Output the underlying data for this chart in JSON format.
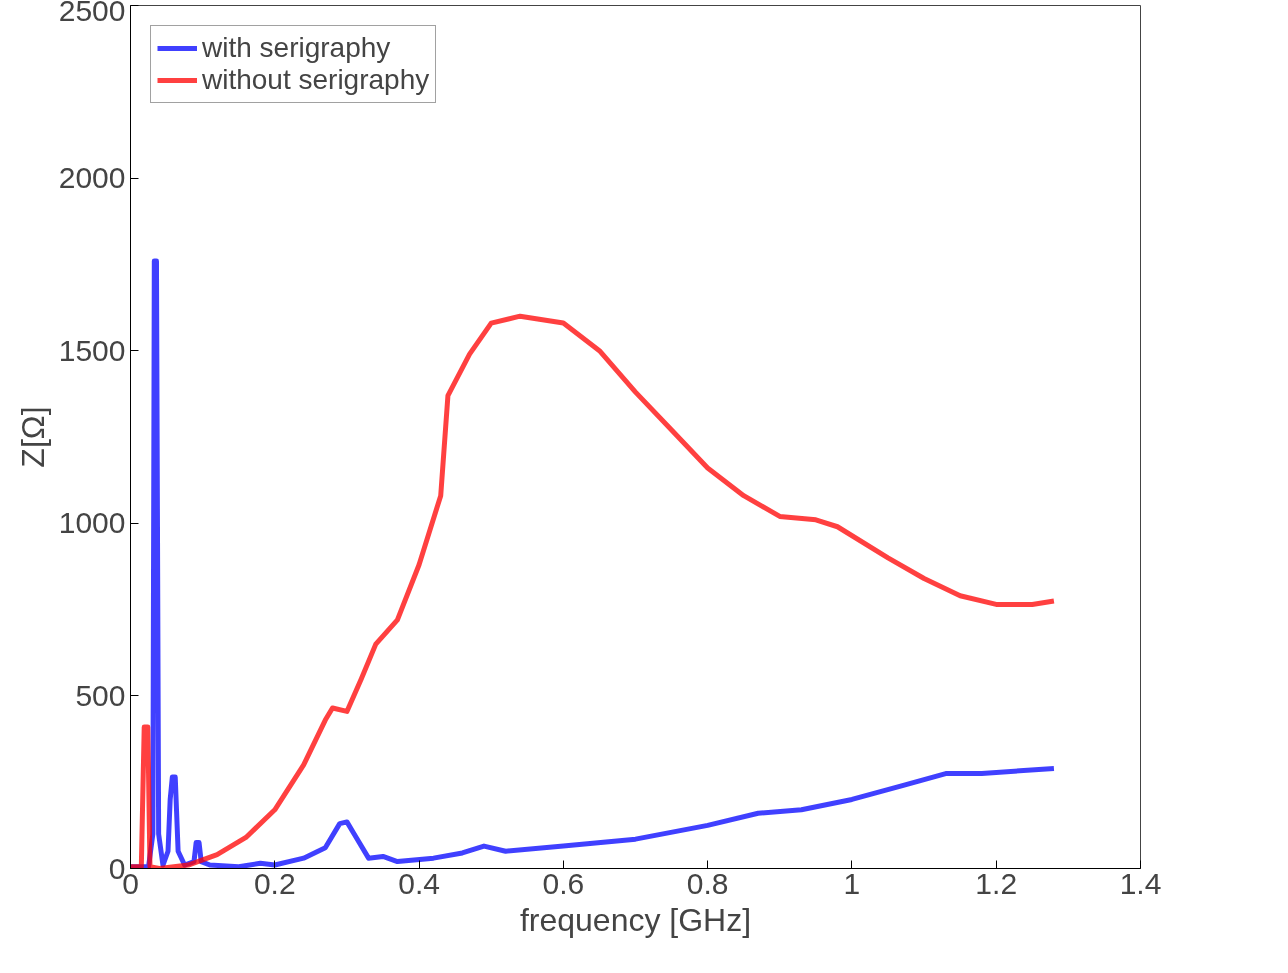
{
  "chart_data": {
    "type": "line",
    "xlabel": "frequency [GHz]",
    "ylabel": "Z[Ω]",
    "xlim": [
      0,
      1.4
    ],
    "ylim": [
      0,
      2500
    ],
    "xticks": [
      0,
      0.2,
      0.4,
      0.6,
      0.8,
      1,
      1.2,
      1.4
    ],
    "yticks": [
      0,
      500,
      1000,
      1500,
      2000,
      2500
    ],
    "grid": false,
    "legend": "top left",
    "line_style": "solid",
    "series": [
      {
        "name": "with serigraphy",
        "color": "#0000ff",
        "x": [
          0,
          0.025,
          0.031,
          0.033,
          0.036,
          0.039,
          0.045,
          0.052,
          0.055,
          0.058,
          0.062,
          0.066,
          0.075,
          0.088,
          0.091,
          0.095,
          0.098,
          0.11,
          0.15,
          0.18,
          0.2,
          0.24,
          0.27,
          0.29,
          0.3,
          0.31,
          0.33,
          0.35,
          0.37,
          0.42,
          0.46,
          0.49,
          0.52,
          0.6,
          0.7,
          0.8,
          0.87,
          0.93,
          1.0,
          1.07,
          1.13,
          1.18,
          1.28
        ],
        "values": [
          5,
          5,
          100,
          1760,
          1760,
          100,
          10,
          50,
          200,
          265,
          265,
          50,
          10,
          20,
          75,
          75,
          20,
          10,
          5,
          15,
          10,
          30,
          60,
          130,
          135,
          100,
          30,
          35,
          20,
          30,
          45,
          65,
          50,
          65,
          85,
          125,
          160,
          170,
          200,
          240,
          275,
          275,
          290
        ]
      },
      {
        "name": "without serigraphy",
        "color": "#ff0000",
        "x": [
          0,
          0.015,
          0.019,
          0.024,
          0.027,
          0.04,
          0.08,
          0.12,
          0.16,
          0.2,
          0.24,
          0.27,
          0.28,
          0.3,
          0.32,
          0.34,
          0.37,
          0.4,
          0.43,
          0.44,
          0.47,
          0.5,
          0.54,
          0.6,
          0.65,
          0.7,
          0.75,
          0.8,
          0.85,
          0.9,
          0.95,
          0.98,
          1.05,
          1.1,
          1.15,
          1.2,
          1.25,
          1.28
        ],
        "values": [
          5,
          5,
          410,
          410,
          5,
          0,
          10,
          40,
          90,
          170,
          300,
          430,
          465,
          455,
          550,
          650,
          720,
          880,
          1080,
          1370,
          1490,
          1580,
          1600,
          1580,
          1500,
          1380,
          1270,
          1160,
          1080,
          1020,
          1010,
          990,
          900,
          840,
          790,
          765,
          765,
          775
        ]
      }
    ]
  }
}
